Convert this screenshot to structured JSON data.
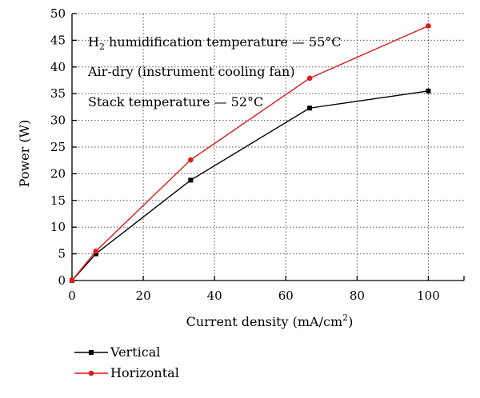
{
  "chart_data": {
    "type": "line",
    "xlabel_main": "Current density (mA/cm",
    "xlabel_sup": "2",
    "xlabel_end": ")",
    "ylabel": "Power (W)",
    "xlim": [
      0,
      110
    ],
    "ylim": [
      0,
      50
    ],
    "xticks": [
      0,
      20,
      40,
      60,
      80,
      100
    ],
    "yticks": [
      0,
      5,
      10,
      15,
      20,
      25,
      30,
      35,
      40,
      45,
      50
    ],
    "grid": "dotted",
    "annotations": {
      "line1_pre": "H",
      "line1_sub": "2",
      "line1_post": " humidification temperature — 55°C",
      "line2": "Air-dry (instrument cooling fan)",
      "line3": "Stack temperature — 52°C"
    },
    "legend_position": "bottom-left, below plot",
    "series": [
      {
        "name": "Vertical",
        "color": "#000000",
        "marker": "square",
        "x": [
          0,
          6.7,
          33.3,
          66.7,
          100
        ],
        "y": [
          0,
          5.0,
          18.8,
          32.3,
          35.5
        ]
      },
      {
        "name": "Horizontal",
        "color": "#dd1c1c",
        "marker": "circle",
        "x": [
          0,
          6.7,
          33.3,
          66.7,
          100
        ],
        "y": [
          0,
          5.5,
          22.6,
          37.9,
          47.7
        ]
      }
    ]
  }
}
